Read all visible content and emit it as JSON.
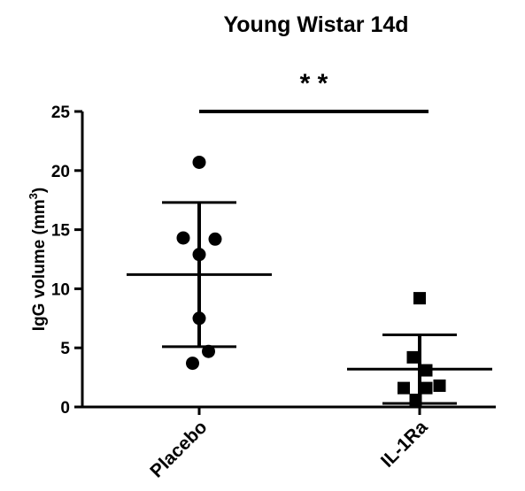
{
  "chart_data": {
    "type": "scatter",
    "title": "Young Wistar 14d",
    "ylabel": "IgG volume (mm",
    "ylabel_sup": "3",
    "ylabel_close": ")",
    "ylim": [
      0,
      25
    ],
    "yticks": [
      0,
      5,
      10,
      15,
      20,
      25
    ],
    "categories": [
      "Placebo",
      "IL-1Ra"
    ],
    "series": [
      {
        "category": "Placebo",
        "marker": "circle",
        "points": [
          {
            "x": 0.0,
            "y": 20.7
          },
          {
            "x": -0.12,
            "y": 14.3
          },
          {
            "x": 0.12,
            "y": 14.2
          },
          {
            "x": 0.0,
            "y": 12.9
          },
          {
            "x": 0.0,
            "y": 7.5
          },
          {
            "x": 0.07,
            "y": 4.7
          },
          {
            "x": -0.05,
            "y": 3.7
          }
        ],
        "mean": 11.2,
        "sd_upper": 17.3,
        "sd_lower": 5.1
      },
      {
        "category": "IL-1Ra",
        "marker": "square",
        "points": [
          {
            "x": 0.0,
            "y": 9.2
          },
          {
            "x": -0.05,
            "y": 4.2
          },
          {
            "x": 0.05,
            "y": 3.1
          },
          {
            "x": -0.12,
            "y": 1.6
          },
          {
            "x": 0.05,
            "y": 1.6
          },
          {
            "x": 0.15,
            "y": 1.8
          },
          {
            "x": -0.03,
            "y": 0.6
          }
        ],
        "mean": 3.2,
        "sd_upper": 6.1,
        "sd_lower": 0.3
      }
    ],
    "significance": {
      "label": "* *",
      "between": [
        "Placebo",
        "IL-1Ra"
      ]
    },
    "grid": false,
    "legend": "none"
  }
}
